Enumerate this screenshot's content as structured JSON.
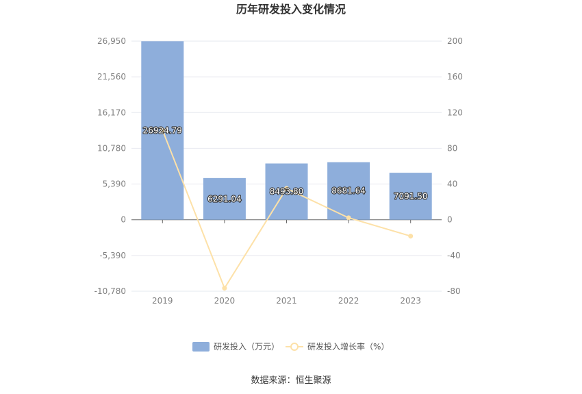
{
  "title": "历年研发投入变化情况",
  "source": "数据来源：恒生聚源",
  "colors": {
    "bar": "#8eaedb",
    "line": "#fde1a8",
    "grid": "#e6e8ef",
    "axis": "#666666"
  },
  "chart_data": {
    "type": "bar",
    "title": "历年研发投入变化情况",
    "categories": [
      "2019",
      "2020",
      "2021",
      "2022",
      "2023"
    ],
    "series": [
      {
        "name": "研发投入（万元）",
        "type": "bar",
        "axis": "left",
        "values": [
          26924.79,
          6291.04,
          8493.8,
          8681.64,
          7091.5
        ],
        "labels": [
          "26924.79",
          "6291.04",
          "8493.80",
          "8681.64",
          "7091.50"
        ]
      },
      {
        "name": "研发投入增长率（%）",
        "type": "line",
        "axis": "right",
        "values": [
          100.5,
          -76.6,
          35.0,
          2.2,
          -18.3
        ]
      }
    ],
    "y_left": {
      "ticks": [
        26950,
        21560,
        16170,
        10780,
        5390,
        0,
        -5390,
        -10780
      ],
      "tick_labels": [
        "26,950",
        "21,560",
        "16,170",
        "10,780",
        "5,390",
        "0",
        "-5,390",
        "-10,780"
      ],
      "ylim": [
        -10780,
        26950
      ]
    },
    "y_right": {
      "ticks": [
        200,
        160,
        120,
        80,
        40,
        0,
        -40,
        -80
      ],
      "tick_labels": [
        "200",
        "160",
        "120",
        "80",
        "40",
        "0",
        "-40",
        "-80"
      ],
      "ylim": [
        -80,
        200
      ]
    },
    "grid": true,
    "legend_position": "bottom"
  }
}
